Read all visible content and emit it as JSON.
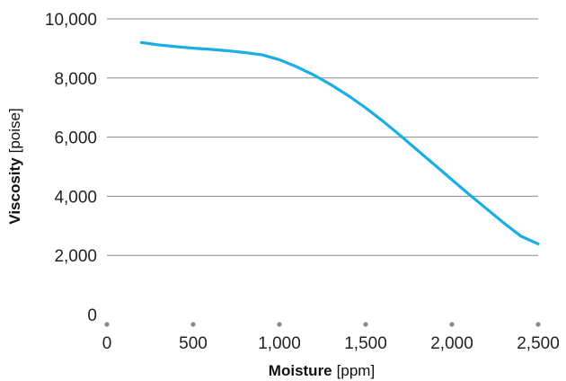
{
  "chart_data": {
    "type": "line",
    "xlabel": "Moisture",
    "xunit": "ppm",
    "ylabel": "Viscosity",
    "yunit": "poise",
    "xlim": [
      0,
      2500
    ],
    "ylim": [
      0,
      10000
    ],
    "x_ticks": [
      0,
      500,
      1000,
      1500,
      2000,
      2500
    ],
    "x_tick_labels": [
      "0",
      "500",
      "1,000",
      "1,500",
      "2,000",
      "2,500"
    ],
    "y_ticks": [
      0,
      2000,
      4000,
      6000,
      8000,
      10000
    ],
    "y_tick_labels": [
      "0",
      "2,000",
      "4,000",
      "6,000",
      "8,000",
      "10,000"
    ],
    "grid": "horizontal",
    "legend": "none",
    "series": [
      {
        "color": "#1AAEE3",
        "x": [
          200,
          300,
          400,
          500,
          600,
          700,
          800,
          900,
          1000,
          1100,
          1200,
          1300,
          1400,
          1500,
          1600,
          1700,
          1800,
          1900,
          2000,
          2100,
          2200,
          2300,
          2400,
          2500
        ],
        "y": [
          9200,
          9120,
          9060,
          9010,
          8970,
          8920,
          8860,
          8780,
          8620,
          8380,
          8100,
          7770,
          7400,
          6990,
          6540,
          6060,
          5560,
          5060,
          4560,
          4060,
          3580,
          3100,
          2650,
          2390
        ]
      }
    ]
  },
  "colors": {
    "line": "#1AAEE3",
    "grid": "#8a8a8a",
    "tick_dot": "#888888"
  }
}
